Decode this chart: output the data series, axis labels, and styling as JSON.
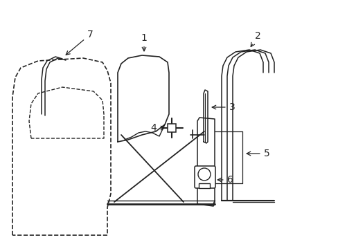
{
  "bg_color": "#ffffff",
  "lc": "#222222",
  "lw": 1.1,
  "fs": 10,
  "fig_w": 4.89,
  "fig_h": 3.6,
  "dpi": 100
}
